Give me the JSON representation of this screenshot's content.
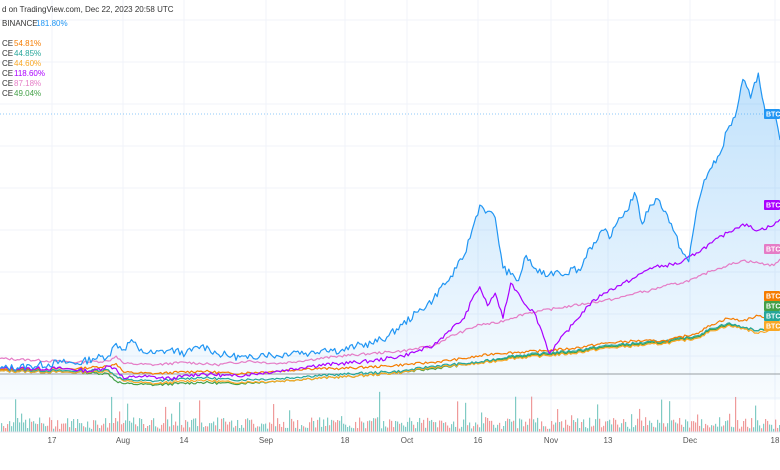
{
  "header": {
    "published": "d on TradingView.com, Dec 22, 2023 20:58 UTC"
  },
  "legend": [
    {
      "label": "BINANCE",
      "value": "181.80%",
      "color": "#2196F3"
    },
    {
      "label": "CE",
      "value": "54.81%",
      "color": "#F57C00"
    },
    {
      "label": "CE",
      "value": "44.85%",
      "color": "#26A69A"
    },
    {
      "label": "CE",
      "value": "44.60%",
      "color": "#F9A825"
    },
    {
      "label": "CE",
      "value": "118.60%",
      "color": "#AA00FF"
    },
    {
      "label": "CE",
      "value": "87.18%",
      "color": "#E57CC6"
    },
    {
      "label": "CE",
      "value": "49.04%",
      "color": "#43A047"
    }
  ],
  "price_tags": [
    {
      "label": "BTC",
      "series": 0
    },
    {
      "label": "BTC",
      "series": 4
    },
    {
      "label": "BTC",
      "series": 5
    },
    {
      "label": "BTC",
      "series": 1
    },
    {
      "label": "BTC",
      "series": 6
    },
    {
      "label": "BTC",
      "series": 2
    },
    {
      "label": "BTC",
      "series": 3
    }
  ],
  "chart_data": {
    "type": "line",
    "x_axis_labels": [
      "17",
      "Aug",
      "14",
      "Sep",
      "18",
      "Oct",
      "16",
      "Nov",
      "13",
      "Dec",
      "18"
    ],
    "y_unit": "% change",
    "grid": true,
    "series": [
      {
        "color": "#2196F3",
        "area": true,
        "points": [
          [
            0,
            0
          ],
          [
            4,
            2
          ],
          [
            8,
            5
          ],
          [
            10,
            4
          ],
          [
            12,
            8
          ],
          [
            14,
            10
          ],
          [
            15,
            20
          ],
          [
            16,
            15
          ],
          [
            17,
            23
          ],
          [
            18,
            14
          ],
          [
            20,
            12
          ],
          [
            22,
            15
          ],
          [
            24,
            12
          ],
          [
            26,
            18
          ],
          [
            27,
            16
          ],
          [
            28,
            12
          ],
          [
            30,
            10
          ],
          [
            32,
            8
          ],
          [
            34,
            12
          ],
          [
            36,
            10
          ],
          [
            38,
            14
          ],
          [
            40,
            12
          ],
          [
            42,
            16
          ],
          [
            44,
            14
          ],
          [
            46,
            18
          ],
          [
            48,
            20
          ],
          [
            50,
            25
          ],
          [
            52,
            35
          ],
          [
            54,
            45
          ],
          [
            56,
            55
          ],
          [
            57,
            65
          ],
          [
            58,
            70
          ],
          [
            59,
            80
          ],
          [
            60,
            90
          ],
          [
            61,
            110
          ],
          [
            62,
            130
          ],
          [
            63,
            125
          ],
          [
            64,
            120
          ],
          [
            65,
            80
          ],
          [
            66,
            75
          ],
          [
            67,
            70
          ],
          [
            68,
            90
          ],
          [
            69,
            80
          ],
          [
            70,
            75
          ],
          [
            71,
            75
          ],
          [
            72,
            78
          ],
          [
            73,
            75
          ],
          [
            74,
            80
          ],
          [
            75,
            78
          ],
          [
            76,
            95
          ],
          [
            77,
            100
          ],
          [
            78,
            110
          ],
          [
            79,
            105
          ],
          [
            80,
            120
          ],
          [
            81,
            125
          ],
          [
            82,
            140
          ],
          [
            83,
            115
          ],
          [
            84,
            130
          ],
          [
            85,
            135
          ],
          [
            86,
            125
          ],
          [
            87,
            110
          ],
          [
            88,
            95
          ],
          [
            89,
            85
          ],
          [
            90,
            125
          ],
          [
            91,
            150
          ],
          [
            92,
            160
          ],
          [
            93,
            170
          ],
          [
            94,
            190
          ],
          [
            95,
            200
          ],
          [
            96,
            230
          ],
          [
            97,
            215
          ],
          [
            98,
            235
          ],
          [
            99,
            200
          ],
          [
            100,
            205
          ],
          [
            100.8,
            181.8
          ]
        ]
      },
      {
        "color": "#F57C00",
        "points": [
          [
            0,
            -1
          ],
          [
            10,
            0
          ],
          [
            14,
            2
          ],
          [
            15,
            4
          ],
          [
            16,
            -3
          ],
          [
            20,
            -4
          ],
          [
            26,
            -2
          ],
          [
            30,
            -4
          ],
          [
            36,
            -2
          ],
          [
            40,
            0
          ],
          [
            44,
            0
          ],
          [
            50,
            2
          ],
          [
            56,
            5
          ],
          [
            60,
            8
          ],
          [
            64,
            12
          ],
          [
            70,
            14
          ],
          [
            74,
            16
          ],
          [
            78,
            20
          ],
          [
            82,
            22
          ],
          [
            86,
            22
          ],
          [
            90,
            28
          ],
          [
            92,
            35
          ],
          [
            94,
            40
          ],
          [
            96,
            38
          ],
          [
            98,
            42
          ],
          [
            100,
            40
          ],
          [
            100.8,
            54.81
          ]
        ]
      },
      {
        "color": "#26A69A",
        "points": [
          [
            0,
            -1
          ],
          [
            10,
            -2
          ],
          [
            14,
            -1
          ],
          [
            15,
            -6
          ],
          [
            16,
            -9
          ],
          [
            20,
            -10
          ],
          [
            26,
            -7
          ],
          [
            30,
            -9
          ],
          [
            36,
            -8
          ],
          [
            40,
            -6
          ],
          [
            46,
            -4
          ],
          [
            52,
            -2
          ],
          [
            56,
            2
          ],
          [
            60,
            4
          ],
          [
            62,
            5
          ],
          [
            66,
            10
          ],
          [
            70,
            12
          ],
          [
            74,
            14
          ],
          [
            78,
            18
          ],
          [
            82,
            20
          ],
          [
            86,
            22
          ],
          [
            90,
            26
          ],
          [
            92,
            32
          ],
          [
            94,
            36
          ],
          [
            96,
            33
          ],
          [
            98,
            30
          ],
          [
            100,
            34
          ],
          [
            100.8,
            44.85
          ]
        ]
      },
      {
        "color": "#F9A825",
        "points": [
          [
            0,
            -2
          ],
          [
            10,
            -3
          ],
          [
            14,
            -2
          ],
          [
            15,
            -6
          ],
          [
            16,
            -10
          ],
          [
            20,
            -12
          ],
          [
            26,
            -9
          ],
          [
            30,
            -11
          ],
          [
            36,
            -10
          ],
          [
            40,
            -8
          ],
          [
            46,
            -6
          ],
          [
            52,
            -3
          ],
          [
            56,
            1
          ],
          [
            60,
            3
          ],
          [
            62,
            4
          ],
          [
            66,
            8
          ],
          [
            70,
            10
          ],
          [
            74,
            12
          ],
          [
            78,
            16
          ],
          [
            82,
            18
          ],
          [
            86,
            20
          ],
          [
            90,
            24
          ],
          [
            92,
            30
          ],
          [
            94,
            34
          ],
          [
            96,
            32
          ],
          [
            98,
            28
          ],
          [
            100,
            32
          ],
          [
            100.8,
            44.6
          ]
        ]
      },
      {
        "color": "#AA00FF",
        "points": [
          [
            0,
            0
          ],
          [
            8,
            0
          ],
          [
            12,
            -2
          ],
          [
            14,
            2
          ],
          [
            15,
            0
          ],
          [
            16,
            -8
          ],
          [
            18,
            -6
          ],
          [
            22,
            -8
          ],
          [
            26,
            -4
          ],
          [
            30,
            -6
          ],
          [
            36,
            -2
          ],
          [
            40,
            2
          ],
          [
            44,
            4
          ],
          [
            48,
            6
          ],
          [
            52,
            10
          ],
          [
            54,
            14
          ],
          [
            56,
            18
          ],
          [
            58,
            30
          ],
          [
            60,
            40
          ],
          [
            61,
            55
          ],
          [
            62,
            65
          ],
          [
            63,
            50
          ],
          [
            64,
            60
          ],
          [
            65,
            40
          ],
          [
            66,
            68
          ],
          [
            67,
            60
          ],
          [
            68,
            50
          ],
          [
            69,
            45
          ],
          [
            70,
            30
          ],
          [
            71,
            12
          ],
          [
            72,
            20
          ],
          [
            74,
            35
          ],
          [
            76,
            50
          ],
          [
            78,
            60
          ],
          [
            80,
            66
          ],
          [
            82,
            72
          ],
          [
            84,
            80
          ],
          [
            86,
            82
          ],
          [
            88,
            84
          ],
          [
            90,
            92
          ],
          [
            92,
            100
          ],
          [
            94,
            108
          ],
          [
            96,
            115
          ],
          [
            98,
            110
          ],
          [
            100,
            114
          ],
          [
            100.8,
            118.6
          ]
        ]
      },
      {
        "color": "#E57CC6",
        "points": [
          [
            0,
            8
          ],
          [
            10,
            5
          ],
          [
            14,
            6
          ],
          [
            15,
            10
          ],
          [
            16,
            4
          ],
          [
            20,
            3
          ],
          [
            24,
            5
          ],
          [
            28,
            3
          ],
          [
            32,
            6
          ],
          [
            36,
            4
          ],
          [
            40,
            7
          ],
          [
            44,
            10
          ],
          [
            48,
            12
          ],
          [
            52,
            14
          ],
          [
            56,
            18
          ],
          [
            58,
            25
          ],
          [
            60,
            30
          ],
          [
            62,
            35
          ],
          [
            64,
            36
          ],
          [
            66,
            40
          ],
          [
            68,
            44
          ],
          [
            70,
            46
          ],
          [
            72,
            48
          ],
          [
            74,
            50
          ],
          [
            76,
            52
          ],
          [
            78,
            54
          ],
          [
            80,
            56
          ],
          [
            82,
            60
          ],
          [
            84,
            62
          ],
          [
            86,
            66
          ],
          [
            88,
            68
          ],
          [
            90,
            72
          ],
          [
            92,
            78
          ],
          [
            94,
            82
          ],
          [
            96,
            86
          ],
          [
            98,
            84
          ],
          [
            100,
            82
          ],
          [
            100.8,
            87.18
          ]
        ]
      },
      {
        "color": "#43A047",
        "points": [
          [
            0,
            -2
          ],
          [
            10,
            -3
          ],
          [
            14,
            -4
          ],
          [
            15,
            -10
          ],
          [
            16,
            -12
          ],
          [
            20,
            -13
          ],
          [
            26,
            -11
          ],
          [
            30,
            -12
          ],
          [
            36,
            -10
          ],
          [
            40,
            -8
          ],
          [
            46,
            -6
          ],
          [
            52,
            -3
          ],
          [
            56,
            0
          ],
          [
            60,
            3
          ],
          [
            62,
            5
          ],
          [
            66,
            9
          ],
          [
            70,
            11
          ],
          [
            74,
            13
          ],
          [
            78,
            17
          ],
          [
            82,
            19
          ],
          [
            86,
            21
          ],
          [
            90,
            25
          ],
          [
            92,
            31
          ],
          [
            94,
            35
          ],
          [
            96,
            33
          ],
          [
            98,
            30
          ],
          [
            100,
            33
          ],
          [
            100.8,
            49.04
          ]
        ]
      }
    ]
  }
}
